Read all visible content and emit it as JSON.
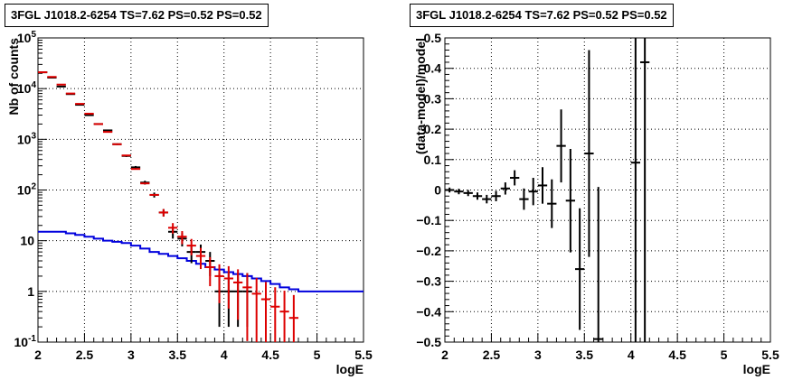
{
  "chart_data": [
    {
      "type": "step+errorbar",
      "title": "3FGL J1018.2-6254 TS=7.62 PS=0.52 PS=0.52",
      "xlabel": "logE",
      "ylabel": "Nb of counts",
      "xlim": [
        2,
        5.5
      ],
      "ylim": [
        0.1,
        100000
      ],
      "yscale": "log",
      "grid": true,
      "x_ticks": [
        "2",
        "2.5",
        "3",
        "3.5",
        "4",
        "4.5",
        "5",
        "5.5"
      ],
      "y_ticks": [
        {
          "value": 0.1,
          "base": "10",
          "exp": "-1"
        },
        {
          "value": 1,
          "base": "1",
          "exp": ""
        },
        {
          "value": 10,
          "base": "10",
          "exp": ""
        },
        {
          "value": 100,
          "base": "10",
          "exp": "2"
        },
        {
          "value": 1000,
          "base": "10",
          "exp": "3"
        },
        {
          "value": 10000,
          "base": "10",
          "exp": "4"
        },
        {
          "value": 100000,
          "base": "10",
          "exp": "5"
        }
      ],
      "bin_edges": [
        2.0,
        2.1,
        2.2,
        2.3,
        2.4,
        2.5,
        2.6,
        2.7,
        2.8,
        2.9,
        3.0,
        3.1,
        3.2,
        3.3,
        3.4,
        3.5,
        3.6,
        3.7,
        3.8,
        3.9,
        4.0,
        4.1,
        4.2,
        4.3,
        4.4,
        4.5,
        4.6,
        4.7,
        4.8,
        4.9,
        5.0,
        5.1,
        5.2,
        5.3,
        5.4,
        5.5
      ],
      "series": [
        {
          "role": "source-model",
          "color": "#0000dd",
          "step_values": [
            15,
            15,
            15,
            14,
            13,
            12,
            11,
            10,
            9.5,
            9,
            8,
            7,
            6,
            5.5,
            5,
            4.5,
            4,
            3.5,
            3,
            2.7,
            2.4,
            2.2,
            2,
            1.8,
            1.6,
            1.4,
            1.2,
            1.1,
            1,
            1,
            1,
            1,
            1,
            1,
            1
          ]
        },
        {
          "role": "total-model",
          "color": "#dd0000",
          "x": [
            2.05,
            2.15,
            2.25,
            2.35,
            2.45,
            2.55,
            2.65,
            2.75,
            2.85,
            2.95,
            3.05,
            3.15,
            3.25,
            3.35,
            3.45,
            3.55,
            3.65,
            3.75,
            3.85,
            3.95,
            4.05,
            4.15,
            4.25,
            4.35,
            4.45,
            4.55,
            4.65,
            4.75
          ],
          "y": [
            21000,
            17000,
            12000,
            8000,
            5000,
            3200,
            2000,
            1400,
            800,
            480,
            260,
            135,
            80,
            36,
            18,
            12,
            8,
            5,
            3,
            2,
            1.8,
            1.5,
            1.2,
            0.9,
            0.7,
            0.5,
            0.4,
            0.3
          ],
          "err_lo": [
            0,
            0,
            0,
            0,
            0,
            0,
            0,
            0,
            0,
            0,
            0,
            0,
            0,
            0,
            0,
            0,
            0,
            0,
            0,
            0,
            0,
            0,
            0,
            0,
            0,
            0,
            0,
            0
          ],
          "err_hi": [
            0,
            0,
            0,
            0,
            0,
            0,
            0,
            0,
            0,
            0,
            0,
            0,
            0,
            0,
            0,
            0,
            0,
            0,
            0,
            0,
            0,
            0,
            0,
            0,
            0,
            0,
            0,
            0
          ],
          "sym_err": [
            null,
            null,
            null,
            null,
            null,
            null,
            null,
            null,
            null,
            null,
            null,
            null,
            null,
            null,
            null,
            null,
            null,
            null,
            null,
            null,
            null,
            null,
            null,
            null,
            null,
            null,
            null,
            null
          ]
        },
        {
          "role": "data",
          "color": "#000000",
          "x": [
            2.05,
            2.15,
            2.25,
            2.35,
            2.45,
            2.55,
            2.65,
            2.75,
            2.85,
            2.95,
            3.05,
            3.15,
            3.25,
            3.35,
            3.45,
            3.55,
            3.65,
            3.75,
            3.85,
            3.95,
            4.05,
            4.15,
            4.25
          ],
          "y": [
            21000,
            16500,
            11000,
            7800,
            4800,
            3000,
            2000,
            1500,
            800,
            470,
            280,
            140,
            80,
            36,
            15,
            11,
            6,
            6,
            4,
            1,
            1,
            1,
            1
          ],
          "err_lo": [
            145,
            128,
            105,
            88,
            69,
            55,
            45,
            39,
            28,
            22,
            17,
            12,
            9,
            6,
            4,
            3.3,
            2.4,
            2.4,
            2,
            0.8,
            0.8,
            0.8,
            0.8
          ],
          "err_hi": [
            145,
            128,
            105,
            88,
            69,
            55,
            45,
            39,
            28,
            22,
            17,
            12,
            9,
            6,
            4,
            3.3,
            2.4,
            2.4,
            2,
            1.3,
            1.3,
            1.3,
            1.3
          ]
        }
      ]
    },
    {
      "type": "errorbar",
      "title": "3FGL J1018.2-6254 TS=7.62 PS=0.52 PS=0.52",
      "xlabel": "logE",
      "ylabel": "(data-model)/model",
      "xlim": [
        2,
        5.5
      ],
      "ylim": [
        -0.5,
        0.5
      ],
      "grid": true,
      "x_ticks": [
        "2",
        "2.5",
        "3",
        "3.5",
        "4",
        "4.5",
        "5",
        "5.5"
      ],
      "y_ticks": [
        "−0.5",
        "−0.4",
        "−0.3",
        "−0.2",
        "−0.1",
        "0",
        "0.1",
        "0.2",
        "0.3",
        "0.4",
        "0.5"
      ],
      "y_tick_values": [
        -0.5,
        -0.4,
        -0.3,
        -0.2,
        -0.1,
        0,
        0.1,
        0.2,
        0.3,
        0.4,
        0.5
      ],
      "series": [
        {
          "role": "residuals",
          "color": "#000000",
          "x": [
            2.05,
            2.15,
            2.25,
            2.35,
            2.45,
            2.55,
            2.65,
            2.75,
            2.85,
            2.95,
            3.05,
            3.15,
            3.25,
            3.35,
            3.45,
            3.55,
            3.65,
            4.05,
            4.15
          ],
          "y": [
            0.0,
            -0.005,
            -0.01,
            -0.02,
            -0.03,
            -0.02,
            0.005,
            0.04,
            -0.03,
            -0.005,
            0.015,
            -0.045,
            0.145,
            -0.035,
            -0.26,
            0.12,
            -0.49,
            0.09,
            0.42
          ],
          "err": [
            0.008,
            0.009,
            0.01,
            0.012,
            0.014,
            0.017,
            0.02,
            0.025,
            0.035,
            0.045,
            0.06,
            0.08,
            0.12,
            0.17,
            0.2,
            0.34,
            0.5,
            1.0,
            1.0
          ]
        }
      ]
    }
  ]
}
